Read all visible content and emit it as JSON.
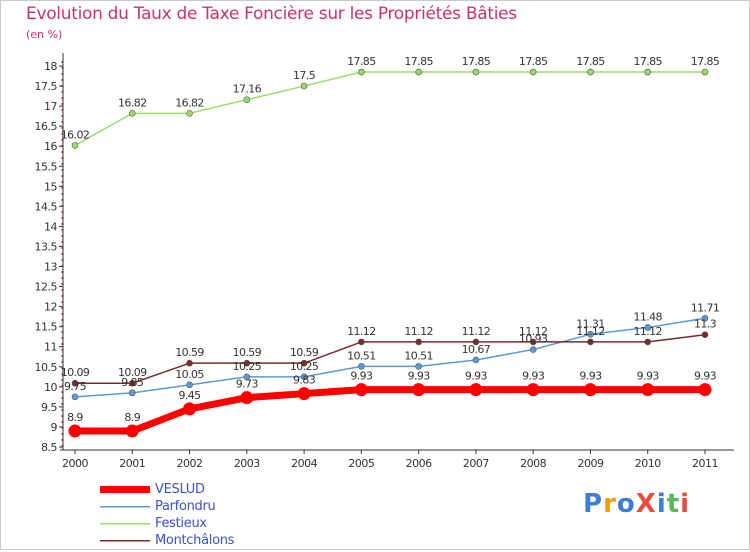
{
  "chart_data": {
    "type": "line",
    "title": "Evolution du Taux de Taxe Foncière sur les Propriétés Bâties",
    "subtitle": "(en %)",
    "xlabel": "",
    "ylabel": "(en %)",
    "categories": [
      "2000",
      "2001",
      "2002",
      "2003",
      "2004",
      "2005",
      "2006",
      "2007",
      "2008",
      "2009",
      "2010",
      "2011"
    ],
    "ylim": [
      8.5,
      18
    ],
    "yticks": [
      "8.5",
      "9",
      "9.5",
      "10",
      "10.5",
      "11",
      "11.5",
      "12",
      "12.5",
      "13",
      "13.5",
      "14",
      "14.5",
      "15",
      "15.5",
      "16",
      "16.5",
      "17",
      "17.5",
      "18"
    ],
    "grid": false,
    "legend_position": "bottom-left",
    "series": [
      {
        "name": "VESLUD",
        "color": "#ff0000",
        "values": [
          8.9,
          8.9,
          9.45,
          9.73,
          9.83,
          9.93,
          9.93,
          9.93,
          9.93,
          9.93,
          9.93,
          9.93
        ],
        "labels": [
          "8.9",
          "8.9",
          "9.45",
          "9.73",
          "9.83",
          "9.93",
          "9.93",
          "9.93",
          "9.93",
          "9.93",
          "9.93",
          "9.93"
        ]
      },
      {
        "name": "Parfondru",
        "color": "#5b9bd5",
        "values": [
          9.75,
          9.85,
          10.05,
          10.25,
          10.25,
          10.51,
          10.51,
          10.67,
          10.93,
          11.31,
          11.48,
          11.71
        ],
        "labels": [
          "9.75",
          "9.85",
          "10.05",
          "10.25",
          "10.25",
          "10.51",
          "10.51",
          "10.67",
          "10.93",
          "11.31",
          "11.48",
          "11.71"
        ]
      },
      {
        "name": "Festieux",
        "color": "#99dd66",
        "values": [
          16.02,
          16.82,
          16.82,
          17.16,
          17.5,
          17.85,
          17.85,
          17.85,
          17.85,
          17.85,
          17.85,
          17.85
        ],
        "labels": [
          "16.02",
          "16.82",
          "16.82",
          "17.16",
          "17.5",
          "17.85",
          "17.85",
          "17.85",
          "17.85",
          "17.85",
          "17.85",
          "17.85"
        ]
      },
      {
        "name": "Montchâlons",
        "color": "#7a2a2a",
        "values": [
          10.09,
          10.09,
          10.59,
          10.59,
          10.59,
          11.12,
          11.12,
          11.12,
          11.12,
          11.12,
          11.12,
          11.3
        ],
        "labels": [
          "10.09",
          "10.09",
          "10.59",
          "10.59",
          "10.59",
          "11.12",
          "11.12",
          "11.12",
          "11.12",
          "11.12",
          "11.12",
          "11.3"
        ]
      }
    ]
  },
  "logo": {
    "text": "ProXiti",
    "letters": [
      {
        "ch": "P",
        "color": "#3b7fd6"
      },
      {
        "ch": "r",
        "color": "#f39c12"
      },
      {
        "ch": "o",
        "color": "#3b7fd6"
      },
      {
        "ch": "X",
        "color": "#e74c3c"
      },
      {
        "ch": "i",
        "color": "#3b7fd6"
      },
      {
        "ch": "t",
        "color": "#5cb85c"
      },
      {
        "ch": "i",
        "color": "#e74c3c"
      }
    ]
  }
}
